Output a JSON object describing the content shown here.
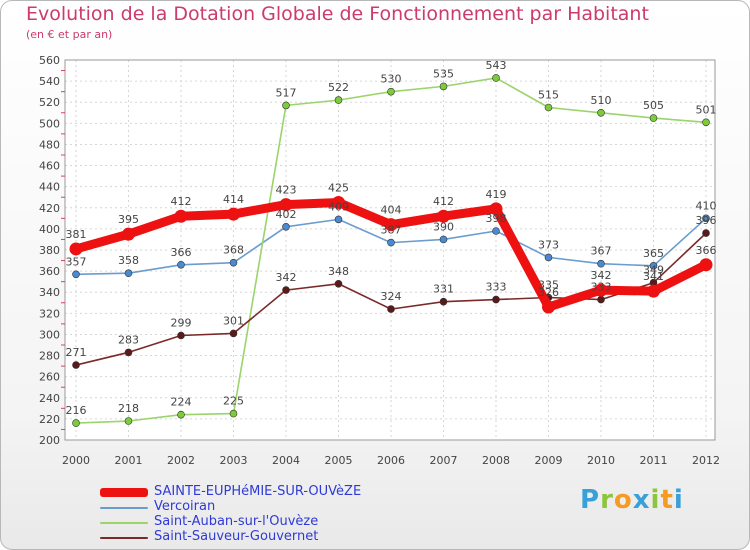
{
  "header": {
    "title": "Evolution de la Dotation Globale de Fonctionnement par Habitant",
    "subtitle": "(en € et par an)"
  },
  "brand": {
    "text": "Proxiti"
  },
  "colors": {
    "title": "#cc3a6e",
    "legend_text": "#2f3ad6"
  },
  "chart_data": {
    "type": "line",
    "title": "Evolution de la Dotation Globale de Fonctionnement par Habitant",
    "subtitle": "(en € et par an)",
    "xlabel": "",
    "ylabel": "",
    "ylim": [
      200,
      560
    ],
    "yticks": [
      200,
      220,
      240,
      260,
      280,
      300,
      320,
      340,
      360,
      380,
      400,
      420,
      440,
      460,
      480,
      500,
      520,
      540,
      560
    ],
    "grid": true,
    "legend_position": "bottom-left",
    "x": [
      "2000",
      "2001",
      "2002",
      "2003",
      "2004",
      "2005",
      "2006",
      "2007",
      "2008",
      "2009",
      "2010",
      "2011",
      "2012"
    ],
    "series": [
      {
        "name": "SAINTE-EUPHéMIE-SUR-OUVèZE",
        "color": "#ee1111",
        "marker": "#dd1111",
        "emphasis": "bold",
        "values": [
          381,
          395,
          412,
          414,
          423,
          425,
          404,
          412,
          419,
          326,
          342,
          341,
          366
        ]
      },
      {
        "name": "Vercoiran",
        "color": "#6a9cd0",
        "marker": "#4a8ad0",
        "emphasis": "normal",
        "values": [
          357,
          358,
          366,
          368,
          402,
          409,
          387,
          390,
          398,
          373,
          367,
          365,
          410
        ]
      },
      {
        "name": "Saint-Auban-sur-l'Ouvèze",
        "color": "#9ad46a",
        "marker": "#7ccc3a",
        "emphasis": "normal",
        "values": [
          216,
          218,
          224,
          225,
          517,
          522,
          530,
          535,
          543,
          515,
          510,
          505,
          501
        ]
      },
      {
        "name": "Saint-Sauveur-Gouvernet",
        "color": "#7a2a2a",
        "marker": "#5a1a1a",
        "emphasis": "normal",
        "values": [
          271,
          283,
          299,
          301,
          342,
          348,
          324,
          331,
          333,
          335,
          333,
          349,
          396
        ]
      }
    ]
  }
}
